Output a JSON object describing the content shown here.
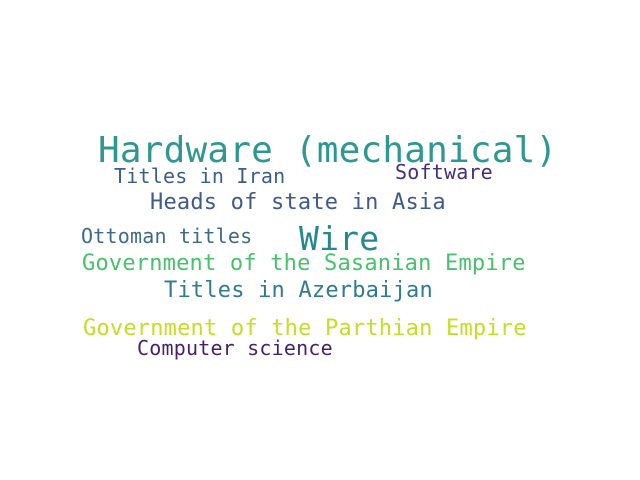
{
  "words": [
    {
      "text": "Hardware (mechanical)",
      "color": "#2e9890"
    },
    {
      "text": "Titles in Iran",
      "color": "#3b5f8c"
    },
    {
      "text": "Software",
      "color": "#472d7b"
    },
    {
      "text": "Heads of state in Asia",
      "color": "#3e5a8e"
    },
    {
      "text": "Ottoman titles",
      "color": "#3d6a8c"
    },
    {
      "text": "Wire",
      "color": "#26888e"
    },
    {
      "text": "Government of the Sasanian Empire",
      "color": "#47c16e"
    },
    {
      "text": "Titles in Azerbaijan",
      "color": "#2f7c8e"
    },
    {
      "text": "Government of the Parthian Empire",
      "color": "#c2df23"
    },
    {
      "text": "Computer science",
      "color": "#481f70"
    }
  ]
}
